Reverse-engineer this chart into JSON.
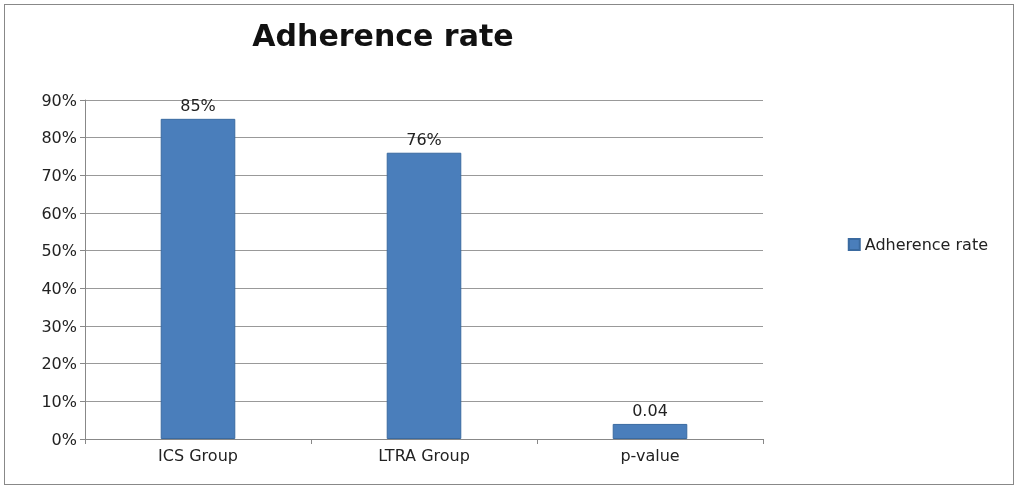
{
  "chart_data": {
    "type": "bar",
    "title": "Adherence rate",
    "categories": [
      "ICS Group",
      "LTRA Group",
      "p-value"
    ],
    "series": [
      {
        "name": "Adherence rate",
        "color": "#4a7ebb",
        "values": [
          0.85,
          0.76,
          0.04
        ],
        "value_labels": [
          "85%",
          "76%",
          "0.04"
        ]
      }
    ],
    "ylim": [
      0,
      0.9
    ],
    "yticks": [
      {
        "value": 0,
        "label": "0%"
      },
      {
        "value": 0.1,
        "label": "10%"
      },
      {
        "value": 0.2,
        "label": "20%"
      },
      {
        "value": 0.3,
        "label": "30%"
      },
      {
        "value": 0.4,
        "label": "40%"
      },
      {
        "value": 0.5,
        "label": "50%"
      },
      {
        "value": 0.6,
        "label": "60%"
      },
      {
        "value": 0.7,
        "label": "70%"
      },
      {
        "value": 0.8,
        "label": "80%"
      },
      {
        "value": 0.9,
        "label": "90%"
      }
    ],
    "grid": "y",
    "legend": "right"
  }
}
